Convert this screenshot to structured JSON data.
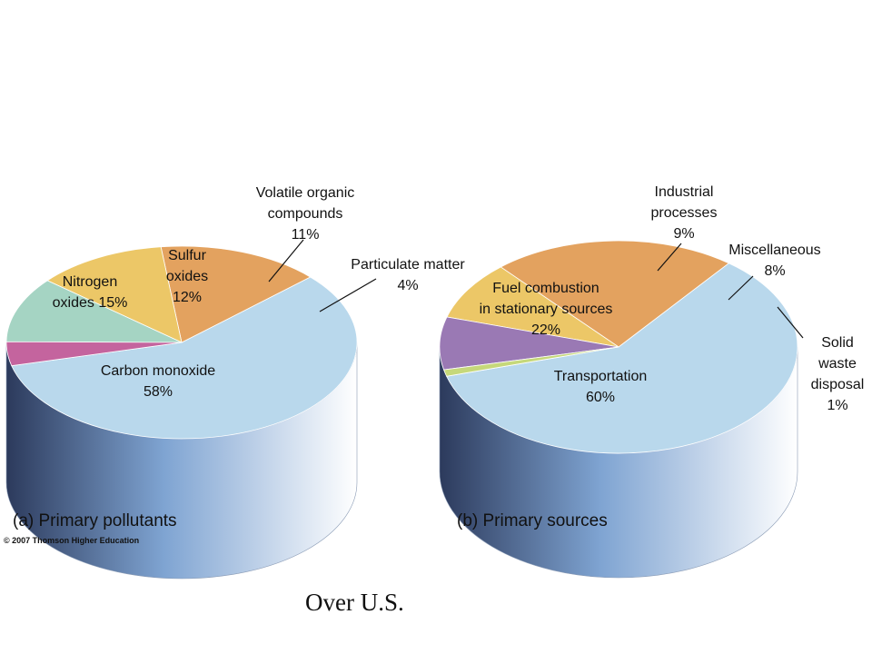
{
  "colors": {
    "carbon_monoxide": "#b9d8ec",
    "nitrogen_oxides": "#e3a25f",
    "sulfur_oxides": "#ecc767",
    "voc": "#a5d4c3",
    "particulate": "#c4649e",
    "transportation": "#b9d8ec",
    "fuel_combustion": "#e3a25f",
    "industrial": "#ecc767",
    "miscellaneous": "#9a79b4",
    "solid_waste": "#c6d87a",
    "side_dark": "#2c3a5c",
    "side_mid": "#7fa4d2",
    "side_light": "#ffffff"
  },
  "chart_data": [
    {
      "type": "pie",
      "caption": "(a) Primary pollutants",
      "slices": [
        {
          "id": "carbon_monoxide",
          "value": 58,
          "label_lines": [
            "Carbon monoxide",
            "58%"
          ]
        },
        {
          "id": "nitrogen_oxides",
          "value": 15,
          "label_lines": [
            "Nitrogen",
            "oxides 15%"
          ]
        },
        {
          "id": "sulfur_oxides",
          "value": 12,
          "label_lines": [
            "Sulfur",
            "oxides",
            "12%"
          ]
        },
        {
          "id": "voc",
          "value": 11,
          "label_lines": [
            "Volatile organic",
            "compounds",
            "11%"
          ]
        },
        {
          "id": "particulate",
          "value": 4,
          "label_lines": [
            "Particulate matter",
            "4%"
          ]
        }
      ]
    },
    {
      "type": "pie",
      "caption": "(b) Primary sources",
      "slices": [
        {
          "id": "transportation",
          "value": 60,
          "label_lines": [
            "Transportation",
            "60%"
          ]
        },
        {
          "id": "fuel_combustion",
          "value": 22,
          "label_lines": [
            "Fuel combustion",
            "in stationary sources",
            "22%"
          ]
        },
        {
          "id": "industrial",
          "value": 9,
          "label_lines": [
            "Industrial",
            "processes",
            "9%"
          ]
        },
        {
          "id": "miscellaneous",
          "value": 8,
          "label_lines": [
            "Miscellaneous",
            "8%"
          ]
        },
        {
          "id": "solid_waste",
          "value": 1,
          "label_lines": [
            "Solid",
            "waste",
            "disposal",
            "1%"
          ]
        }
      ]
    }
  ],
  "copyright": "© 2007 Thomson Higher Education",
  "footnote": "Over U.S."
}
